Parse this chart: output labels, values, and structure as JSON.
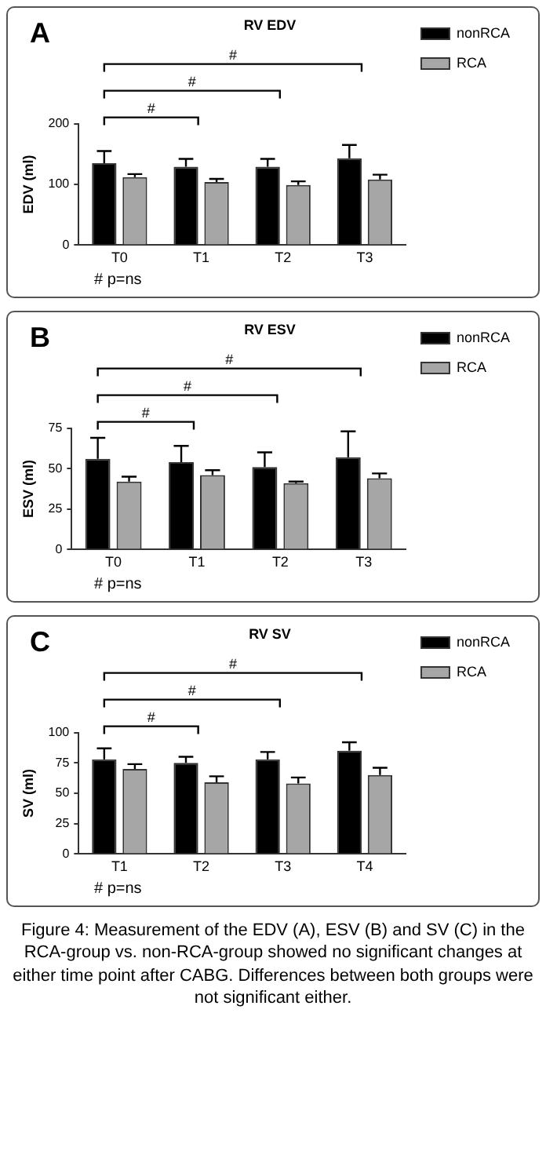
{
  "chart_data": [
    {
      "type": "bar",
      "title": "RV EDV",
      "ylabel": "EDV (ml)",
      "categories": [
        "T0",
        "T1",
        "T2",
        "T3"
      ],
      "series": [
        {
          "name": "nonRCA",
          "color": "#000000",
          "values": [
            135,
            129,
            129,
            143
          ],
          "errors": [
            [
              135,
              155
            ],
            [
              129,
              142
            ],
            [
              129,
              142
            ],
            [
              143,
              165
            ]
          ]
        },
        {
          "name": "RCA",
          "color": "#a6a6a6",
          "values": [
            112,
            104,
            99,
            108
          ],
          "errors": [
            [
              112,
              117
            ],
            [
              104,
              109
            ],
            [
              99,
              105
            ],
            [
              108,
              116
            ]
          ]
        }
      ],
      "ylim": [
        0,
        200
      ],
      "yticks": [
        0,
        100,
        200
      ],
      "grid": false,
      "legend": "right",
      "annotations": [
        "A",
        "#",
        "#",
        "#",
        "# p=ns"
      ]
    },
    {
      "type": "bar",
      "title": "RV ESV",
      "ylabel": "ESV (ml)",
      "categories": [
        "T0",
        "T1",
        "T2",
        "T3"
      ],
      "series": [
        {
          "name": "nonRCA",
          "color": "#000000",
          "values": [
            56,
            54,
            51,
            57
          ],
          "errors": [
            [
              56,
              69
            ],
            [
              54,
              64
            ],
            [
              51,
              60
            ],
            [
              57,
              73
            ]
          ]
        },
        {
          "name": "RCA",
          "color": "#a6a6a6",
          "values": [
            42,
            46,
            41,
            44
          ],
          "errors": [
            [
              42,
              45
            ],
            [
              46,
              49
            ],
            [
              41,
              42
            ],
            [
              44,
              47
            ]
          ]
        }
      ],
      "ylim": [
        0,
        75
      ],
      "yticks": [
        0,
        25,
        50,
        75
      ],
      "grid": false,
      "legend": "right",
      "annotations": [
        "B",
        "#",
        "#",
        "#",
        "# p=ns"
      ]
    },
    {
      "type": "bar",
      "title": "RV SV",
      "ylabel": "SV (ml)",
      "categories": [
        "T1",
        "T2",
        "T3",
        "T4"
      ],
      "series": [
        {
          "name": "nonRCA",
          "color": "#000000",
          "values": [
            78,
            75,
            78,
            85
          ],
          "errors": [
            [
              78,
              87
            ],
            [
              75,
              80
            ],
            [
              78,
              84
            ],
            [
              85,
              92
            ]
          ]
        },
        {
          "name": "RCA",
          "color": "#a6a6a6",
          "values": [
            70,
            59,
            58,
            65
          ],
          "errors": [
            [
              70,
              74
            ],
            [
              59,
              64
            ],
            [
              58,
              63
            ],
            [
              65,
              71
            ]
          ]
        }
      ],
      "ylim": [
        0,
        100
      ],
      "yticks": [
        0,
        25,
        50,
        75,
        100
      ],
      "grid": false,
      "legend": "right",
      "annotations": [
        "C",
        "#",
        "#",
        "#",
        "# p=ns",
        "Figure 4: Measurement of the EDV (A), ESV (B) and SV (C) in the RCA-group vs. non-RCA-group showed no significant changes at either time point after CABG. Differences between both groups were not significant either."
      ]
    }
  ]
}
